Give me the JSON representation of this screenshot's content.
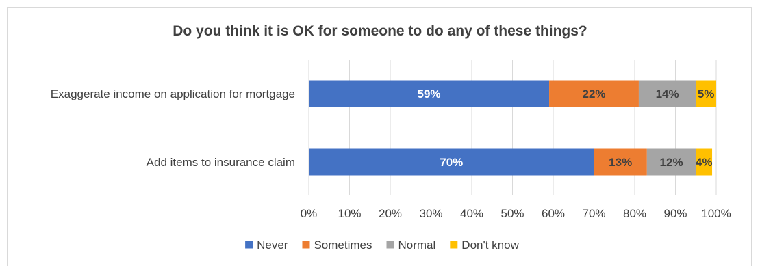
{
  "chart_data": {
    "type": "bar",
    "orientation": "horizontal",
    "stacked": true,
    "title": "Do you think it is OK for someone to do any of these things?",
    "categories": [
      "Exaggerate income on application for mortgage",
      "Add items to insurance claim"
    ],
    "series": [
      {
        "name": "Never",
        "values": [
          59,
          70
        ],
        "labels": [
          "59%",
          "70%"
        ],
        "color": "#4472c4",
        "label_color": "#ffffff"
      },
      {
        "name": "Sometimes",
        "values": [
          22,
          13
        ],
        "labels": [
          "22%",
          "13%"
        ],
        "color": "#ed7d31",
        "label_color": "#404040"
      },
      {
        "name": "Normal",
        "values": [
          14,
          12
        ],
        "labels": [
          "14%",
          "12%"
        ],
        "color": "#a5a5a5",
        "label_color": "#404040"
      },
      {
        "name": "Don't know",
        "values": [
          5,
          4
        ],
        "labels": [
          "5%",
          "4%"
        ],
        "color": "#ffc000",
        "label_color": "#404040"
      }
    ],
    "x_ticks": [
      "0%",
      "10%",
      "20%",
      "30%",
      "40%",
      "50%",
      "60%",
      "70%",
      "80%",
      "90%",
      "100%"
    ],
    "xlim": [
      0,
      100
    ],
    "grid": true,
    "legend_position": "bottom"
  }
}
